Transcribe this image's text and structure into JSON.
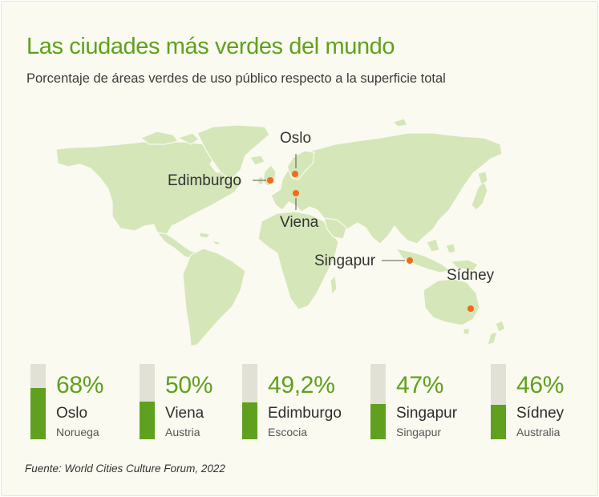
{
  "title": "Las ciudades más verdes del mundo",
  "subtitle": "Porcentaje de áreas verdes de uso público respecto a la superficie total",
  "source": "Fuente: World Cities Culture Forum, 2022",
  "colors": {
    "accent": "#5fa11e",
    "land": "#d5e6b8",
    "marker": "#f26a1b",
    "track": "#e2e1d6"
  },
  "map_labels": {
    "oslo": "Oslo",
    "edimburgo": "Edimburgo",
    "viena": "Viena",
    "singapur": "Singapur",
    "sidney": "Sídney"
  },
  "chart_data": {
    "type": "bar",
    "title": "Las ciudades más verdes del mundo",
    "subtitle": "Porcentaje de áreas verdes de uso público respecto a la superficie total",
    "categories": [
      "Oslo",
      "Viena",
      "Edimburgo",
      "Singapur",
      "Sídney"
    ],
    "countries": [
      "Noruega",
      "Austria",
      "Escocia",
      "Singapur",
      "Australia"
    ],
    "values": [
      68,
      50,
      49.2,
      47,
      46
    ],
    "labels": [
      "68%",
      "50%",
      "49,2%",
      "47%",
      "46%"
    ],
    "ylim": [
      0,
      100
    ],
    "unit": "%"
  }
}
